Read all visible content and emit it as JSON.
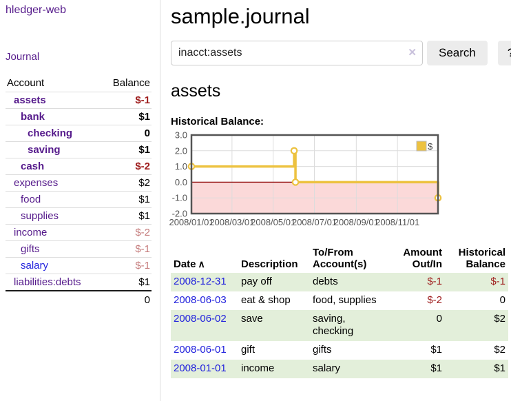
{
  "colors": {
    "link_purple": "#551a8b",
    "link_blue": "#2222dd",
    "negative_red": "#9e1c1c",
    "negative_rose": "#c47a7a",
    "row_green": "#e3efda",
    "series_gold": "#edc240",
    "negative_region_pink": "#fbd9d9",
    "zero_line_red": "#8b0000",
    "grid_border": "#545454",
    "grid_tick": "#dcdcdc",
    "axis_text": "#545454"
  },
  "sidebar": {
    "app_title": "hledger-web",
    "nav": {
      "journal_label": "Journal"
    },
    "accounts_header": {
      "account": "Account",
      "balance": "Balance"
    },
    "accounts": [
      {
        "label": "assets",
        "indent": 1,
        "bold": true,
        "link": "purple",
        "balance": "$-1",
        "bclass": "neg"
      },
      {
        "label": "bank",
        "indent": 2,
        "bold": true,
        "link": "purple",
        "balance": "$1",
        "bclass": ""
      },
      {
        "label": "checking",
        "indent": 3,
        "bold": true,
        "link": "purple",
        "balance": "0",
        "bclass": ""
      },
      {
        "label": "saving",
        "indent": 3,
        "bold": true,
        "link": "purple",
        "balance": "$1",
        "bclass": ""
      },
      {
        "label": "cash",
        "indent": 2,
        "bold": true,
        "link": "purple",
        "balance": "$-2",
        "bclass": "neg"
      },
      {
        "label": "expenses",
        "indent": 1,
        "bold": false,
        "link": "purple",
        "balance": "$2",
        "bclass": ""
      },
      {
        "label": "food",
        "indent": 2,
        "bold": false,
        "link": "purple",
        "balance": "$1",
        "bclass": ""
      },
      {
        "label": "supplies",
        "indent": 2,
        "bold": false,
        "link": "purple",
        "balance": "$1",
        "bclass": ""
      },
      {
        "label": "income",
        "indent": 1,
        "bold": false,
        "link": "purple",
        "balance": "$-2",
        "bclass": "rose"
      },
      {
        "label": "gifts",
        "indent": 2,
        "bold": false,
        "link": "purple",
        "balance": "$-1",
        "bclass": "rose"
      },
      {
        "label": "salary",
        "indent": 2,
        "bold": false,
        "link": "blue",
        "balance": "$-1",
        "bclass": "rose"
      },
      {
        "label": "liabilities:debts",
        "indent": 1,
        "bold": false,
        "link": "purple",
        "balance": "$1",
        "bclass": ""
      }
    ],
    "total": "0"
  },
  "main": {
    "title": "sample.journal",
    "search": {
      "value": "inacct:assets",
      "clear_glyph": "✕",
      "button_label": "Search",
      "help_label": "?"
    },
    "account_heading": "assets",
    "chart_label": "Historical Balance:"
  },
  "chart_data": {
    "type": "line",
    "title": "Historical Balance",
    "legend": {
      "position": "top-right",
      "entries": [
        "$"
      ]
    },
    "ylim": [
      -2,
      3
    ],
    "y_ticks": [
      "3.0",
      "2.0",
      "1.0",
      "0.0",
      "-1.0",
      "-2.0"
    ],
    "y_tick_values": [
      3,
      2,
      1,
      0,
      -1,
      -2
    ],
    "x_range_days": [
      0,
      365
    ],
    "x_ticks": [
      {
        "day": 0,
        "label": "2008/01/01"
      },
      {
        "day": 60,
        "label": "2008/03/01"
      },
      {
        "day": 121,
        "label": "2008/05/01"
      },
      {
        "day": 182,
        "label": "2008/07/01"
      },
      {
        "day": 244,
        "label": "2008/09/01"
      },
      {
        "day": 305,
        "label": "2008/11/01"
      }
    ],
    "series": [
      {
        "name": "$",
        "color": "#edc240",
        "step_points_day_value": [
          [
            0,
            1
          ],
          [
            152,
            1
          ],
          [
            152,
            2
          ],
          [
            154,
            2
          ],
          [
            154,
            0
          ],
          [
            365,
            0
          ],
          [
            365,
            -1
          ]
        ],
        "marker_points_day_value": [
          [
            0,
            1
          ],
          [
            152,
            2
          ],
          [
            154,
            0
          ],
          [
            365,
            -1
          ]
        ],
        "balances_by_date": {
          "2008-01-01": 1,
          "2008-06-01": 2,
          "2008-06-02": 2,
          "2008-06-03": 0,
          "2008-12-31": -1
        }
      }
    ],
    "grid": true,
    "negative_region_below": 0
  },
  "table": {
    "columns": [
      {
        "label": "Date",
        "sortable": true,
        "sort_indicator": "∧"
      },
      {
        "label": "Description"
      },
      {
        "label": "To/From Account(s)"
      },
      {
        "label": "Amount Out/In"
      },
      {
        "label": "Historical Balance"
      }
    ],
    "rows": [
      {
        "date": "2008-12-31",
        "description": "pay off",
        "accounts": "debts",
        "amount": "$-1",
        "amount_class": "neg",
        "balance": "$-1",
        "balance_class": "neg",
        "shade": true
      },
      {
        "date": "2008-06-03",
        "description": "eat & shop",
        "accounts": "food, supplies",
        "amount": "$-2",
        "amount_class": "neg",
        "balance": "0",
        "balance_class": "",
        "shade": false
      },
      {
        "date": "2008-06-02",
        "description": "save",
        "accounts": "saving, checking",
        "amount": "0",
        "amount_class": "",
        "balance": "$2",
        "balance_class": "",
        "shade": true
      },
      {
        "date": "2008-06-01",
        "description": "gift",
        "accounts": "gifts",
        "amount": "$1",
        "amount_class": "",
        "balance": "$2",
        "balance_class": "",
        "shade": false
      },
      {
        "date": "2008-01-01",
        "description": "income",
        "accounts": "salary",
        "amount": "$1",
        "amount_class": "",
        "balance": "$1",
        "balance_class": "",
        "shade": true
      }
    ]
  }
}
